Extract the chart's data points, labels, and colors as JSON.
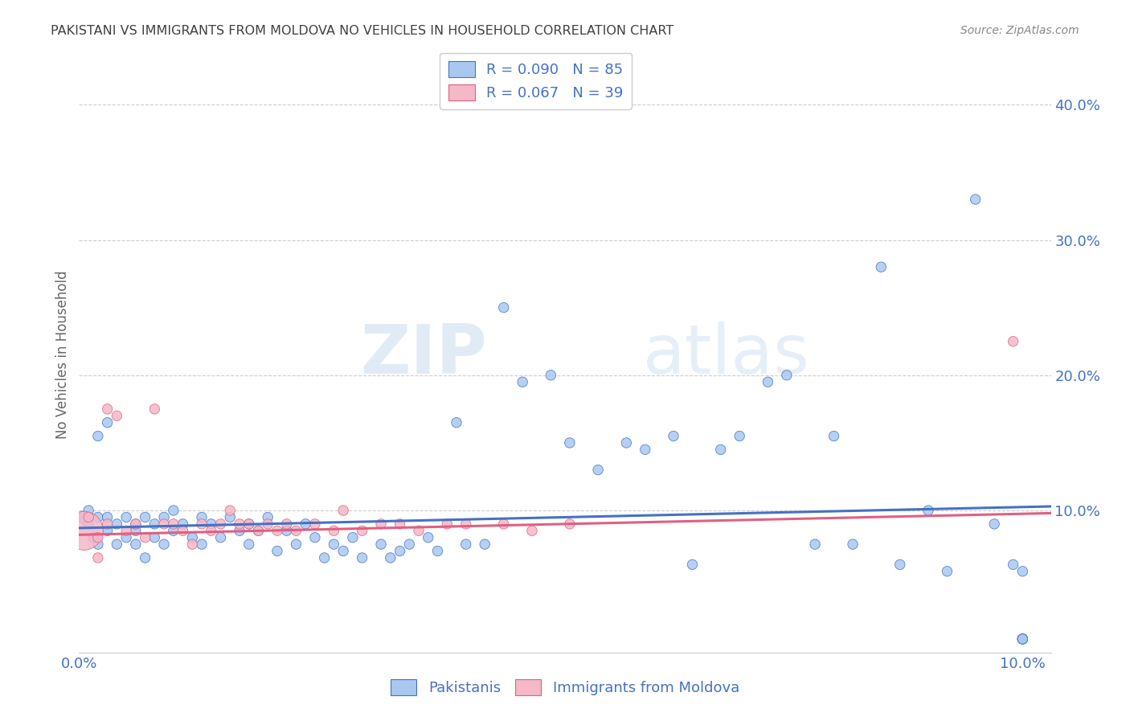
{
  "title": "PAKISTANI VS IMMIGRANTS FROM MOLDOVA NO VEHICLES IN HOUSEHOLD CORRELATION CHART",
  "source": "Source: ZipAtlas.com",
  "ylabel": "No Vehicles in Household",
  "yticks": [
    0.0,
    0.1,
    0.2,
    0.3,
    0.4
  ],
  "ytick_labels": [
    "",
    "10.0%",
    "20.0%",
    "30.0%",
    "40.0%"
  ],
  "xtick_labels": [
    "0.0%",
    "10.0%"
  ],
  "xlim": [
    0.0,
    0.103
  ],
  "ylim": [
    -0.005,
    0.435
  ],
  "legend_r1": "R = 0.090",
  "legend_n1": "N = 85",
  "legend_r2": "R = 0.067",
  "legend_n2": "N = 39",
  "color_blue": "#A8C8F0",
  "color_pink": "#F4B8C8",
  "line_blue": "#4472C4",
  "line_pink": "#E06080",
  "title_color": "#404040",
  "axis_label_color": "#4472C4",
  "source_color": "#888888",
  "watermark_color": "#D8EAF8",
  "grid_color": "#CCCCCC",
  "trend_blue_start": 0.087,
  "trend_blue_end": 0.103,
  "trend_pink_start": 0.082,
  "trend_pink_end": 0.098,
  "pak_x": [
    0.0005,
    0.001,
    0.001,
    0.0015,
    0.002,
    0.002,
    0.002,
    0.003,
    0.003,
    0.003,
    0.004,
    0.004,
    0.005,
    0.005,
    0.006,
    0.006,
    0.006,
    0.007,
    0.007,
    0.008,
    0.008,
    0.009,
    0.009,
    0.01,
    0.01,
    0.011,
    0.012,
    0.013,
    0.013,
    0.014,
    0.015,
    0.016,
    0.017,
    0.018,
    0.018,
    0.019,
    0.02,
    0.021,
    0.022,
    0.023,
    0.024,
    0.025,
    0.026,
    0.027,
    0.028,
    0.029,
    0.03,
    0.032,
    0.033,
    0.034,
    0.035,
    0.037,
    0.038,
    0.04,
    0.041,
    0.043,
    0.045,
    0.047,
    0.05,
    0.052,
    0.055,
    0.058,
    0.06,
    0.063,
    0.065,
    0.068,
    0.07,
    0.073,
    0.075,
    0.078,
    0.08,
    0.082,
    0.085,
    0.087,
    0.09,
    0.092,
    0.095,
    0.097,
    0.099,
    0.1,
    0.1,
    0.1,
    0.1,
    0.1,
    0.1
  ],
  "pak_y": [
    0.095,
    0.1,
    0.09,
    0.08,
    0.155,
    0.095,
    0.075,
    0.165,
    0.085,
    0.095,
    0.075,
    0.09,
    0.08,
    0.095,
    0.085,
    0.075,
    0.09,
    0.065,
    0.095,
    0.08,
    0.09,
    0.075,
    0.095,
    0.085,
    0.1,
    0.09,
    0.08,
    0.095,
    0.075,
    0.09,
    0.08,
    0.095,
    0.085,
    0.09,
    0.075,
    0.085,
    0.095,
    0.07,
    0.085,
    0.075,
    0.09,
    0.08,
    0.065,
    0.075,
    0.07,
    0.08,
    0.065,
    0.075,
    0.065,
    0.07,
    0.075,
    0.08,
    0.07,
    0.165,
    0.075,
    0.075,
    0.25,
    0.195,
    0.2,
    0.15,
    0.13,
    0.15,
    0.145,
    0.155,
    0.06,
    0.145,
    0.155,
    0.195,
    0.2,
    0.075,
    0.155,
    0.075,
    0.28,
    0.06,
    0.1,
    0.055,
    0.33,
    0.09,
    0.06,
    0.005,
    0.055,
    0.005,
    0.005,
    0.005,
    0.005
  ],
  "pak_sizes": [
    120,
    80,
    80,
    80,
    80,
    80,
    80,
    80,
    80,
    80,
    80,
    80,
    80,
    80,
    80,
    80,
    80,
    80,
    80,
    80,
    80,
    80,
    80,
    80,
    80,
    80,
    80,
    80,
    80,
    80,
    80,
    80,
    80,
    80,
    80,
    80,
    80,
    80,
    80,
    80,
    80,
    80,
    80,
    80,
    80,
    80,
    80,
    80,
    80,
    80,
    80,
    80,
    80,
    80,
    80,
    80,
    80,
    80,
    80,
    80,
    80,
    80,
    80,
    80,
    80,
    80,
    80,
    80,
    80,
    80,
    80,
    80,
    80,
    80,
    80,
    80,
    80,
    80,
    80,
    80,
    80,
    80,
    80,
    80,
    80
  ],
  "mol_x": [
    0.0005,
    0.001,
    0.002,
    0.002,
    0.003,
    0.003,
    0.004,
    0.005,
    0.006,
    0.007,
    0.008,
    0.009,
    0.01,
    0.011,
    0.012,
    0.013,
    0.014,
    0.015,
    0.016,
    0.017,
    0.018,
    0.019,
    0.02,
    0.021,
    0.022,
    0.023,
    0.025,
    0.027,
    0.028,
    0.03,
    0.032,
    0.034,
    0.036,
    0.039,
    0.041,
    0.045,
    0.048,
    0.052,
    0.099
  ],
  "mol_y": [
    0.085,
    0.095,
    0.08,
    0.065,
    0.175,
    0.09,
    0.17,
    0.085,
    0.09,
    0.08,
    0.175,
    0.09,
    0.09,
    0.085,
    0.075,
    0.09,
    0.085,
    0.09,
    0.1,
    0.09,
    0.09,
    0.085,
    0.09,
    0.085,
    0.09,
    0.085,
    0.09,
    0.085,
    0.1,
    0.085,
    0.09,
    0.09,
    0.085,
    0.09,
    0.09,
    0.09,
    0.085,
    0.09,
    0.225
  ],
  "mol_sizes": [
    1200,
    80,
    80,
    80,
    80,
    80,
    80,
    80,
    80,
    80,
    80,
    80,
    80,
    80,
    80,
    80,
    80,
    80,
    80,
    80,
    80,
    80,
    80,
    80,
    80,
    80,
    80,
    80,
    80,
    80,
    80,
    80,
    80,
    80,
    80,
    80,
    80,
    80,
    80
  ]
}
